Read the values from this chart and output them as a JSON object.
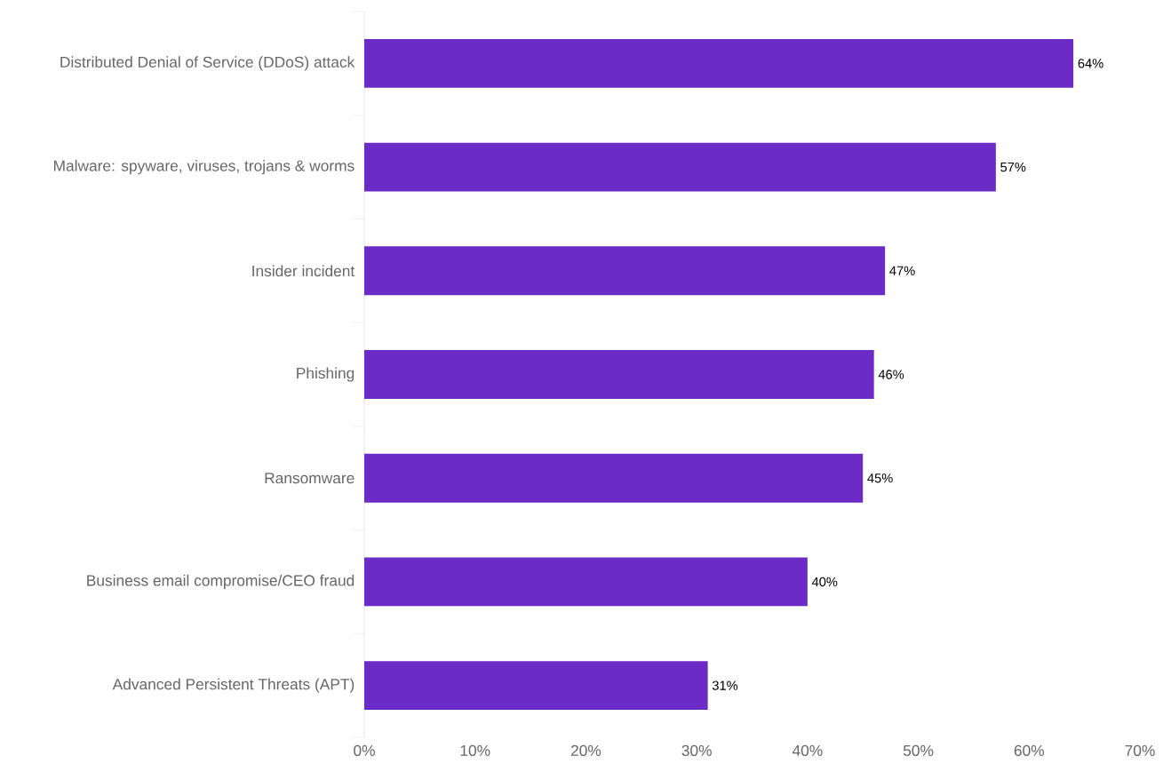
{
  "chart_data": {
    "type": "bar",
    "orientation": "horizontal",
    "categories": [
      "Distributed Denial of Service (DDoS) attack",
      "Malware: spyware, viruses, trojans & worms",
      "Insider incident",
      "Phishing",
      "Ransomware",
      "Business email compromise/CEO fraud",
      "Advanced Persistent Threats (APT)"
    ],
    "values": [
      64,
      57,
      47,
      46,
      45,
      40,
      31
    ],
    "value_labels": [
      "64%",
      "57%",
      "47%",
      "46%",
      "45%",
      "40%",
      "31%"
    ],
    "color": "#6a2bc6",
    "xlim": [
      0,
      70
    ],
    "xticks": [
      {
        "value": 0,
        "label": "0%"
      },
      {
        "value": 10,
        "label": "10%"
      },
      {
        "value": 20,
        "label": "20%"
      },
      {
        "value": 30,
        "label": "30%"
      },
      {
        "value": 40,
        "label": "40%"
      },
      {
        "value": 50,
        "label": "50%"
      },
      {
        "value": 60,
        "label": "60%"
      },
      {
        "value": 70,
        "label": "70%"
      }
    ],
    "grid": false
  }
}
